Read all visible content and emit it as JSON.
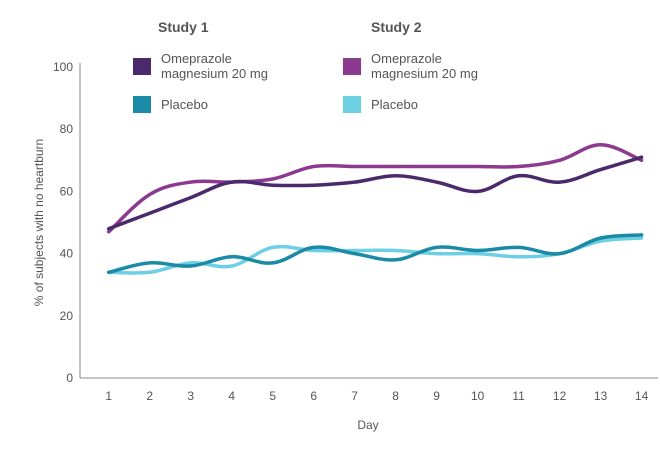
{
  "chart_data": {
    "type": "line",
    "title": "",
    "xlabel": "Day",
    "ylabel": "% of subjects with no heartburn",
    "x": [
      1,
      2,
      3,
      4,
      5,
      6,
      7,
      8,
      9,
      10,
      11,
      12,
      13,
      14
    ],
    "xlim": [
      0.3,
      14.4
    ],
    "ylim": [
      0,
      100
    ],
    "yticks": [
      0,
      20,
      40,
      60,
      80,
      100
    ],
    "grid": false,
    "legend": {
      "study1_heading": "Study 1",
      "study2_heading": "Study 2",
      "study1_omeprazole_line1": "Omeprazole",
      "study1_omeprazole_line2": "magnesium 20 mg",
      "study1_placebo": "Placebo",
      "study2_omeprazole_line1": "Omeprazole",
      "study2_omeprazole_line2": "magnesium 20 mg",
      "study2_placebo": "Placebo"
    },
    "series": [
      {
        "name": "Study 1 Omeprazole magnesium 20 mg",
        "color": "#4a2a6a",
        "values": [
          48,
          53,
          58,
          63,
          62,
          62,
          63,
          65,
          63,
          60,
          65,
          63,
          67,
          71
        ]
      },
      {
        "name": "Study 2 Omeprazole magnesium 20 mg",
        "color": "#8b3a8f",
        "values": [
          47,
          59,
          63,
          63,
          64,
          68,
          68,
          68,
          68,
          68,
          68,
          70,
          75,
          70
        ]
      },
      {
        "name": "Study 1 Placebo",
        "color": "#1a8aa6",
        "values": [
          34,
          37,
          36,
          39,
          37,
          42,
          40,
          38,
          42,
          41,
          42,
          40,
          45,
          46
        ]
      },
      {
        "name": "Study 2 Placebo",
        "color": "#6dcfe3",
        "values": [
          34,
          34,
          37,
          36,
          42,
          41,
          41,
          41,
          40,
          40,
          39,
          40,
          44,
          45
        ]
      }
    ]
  }
}
